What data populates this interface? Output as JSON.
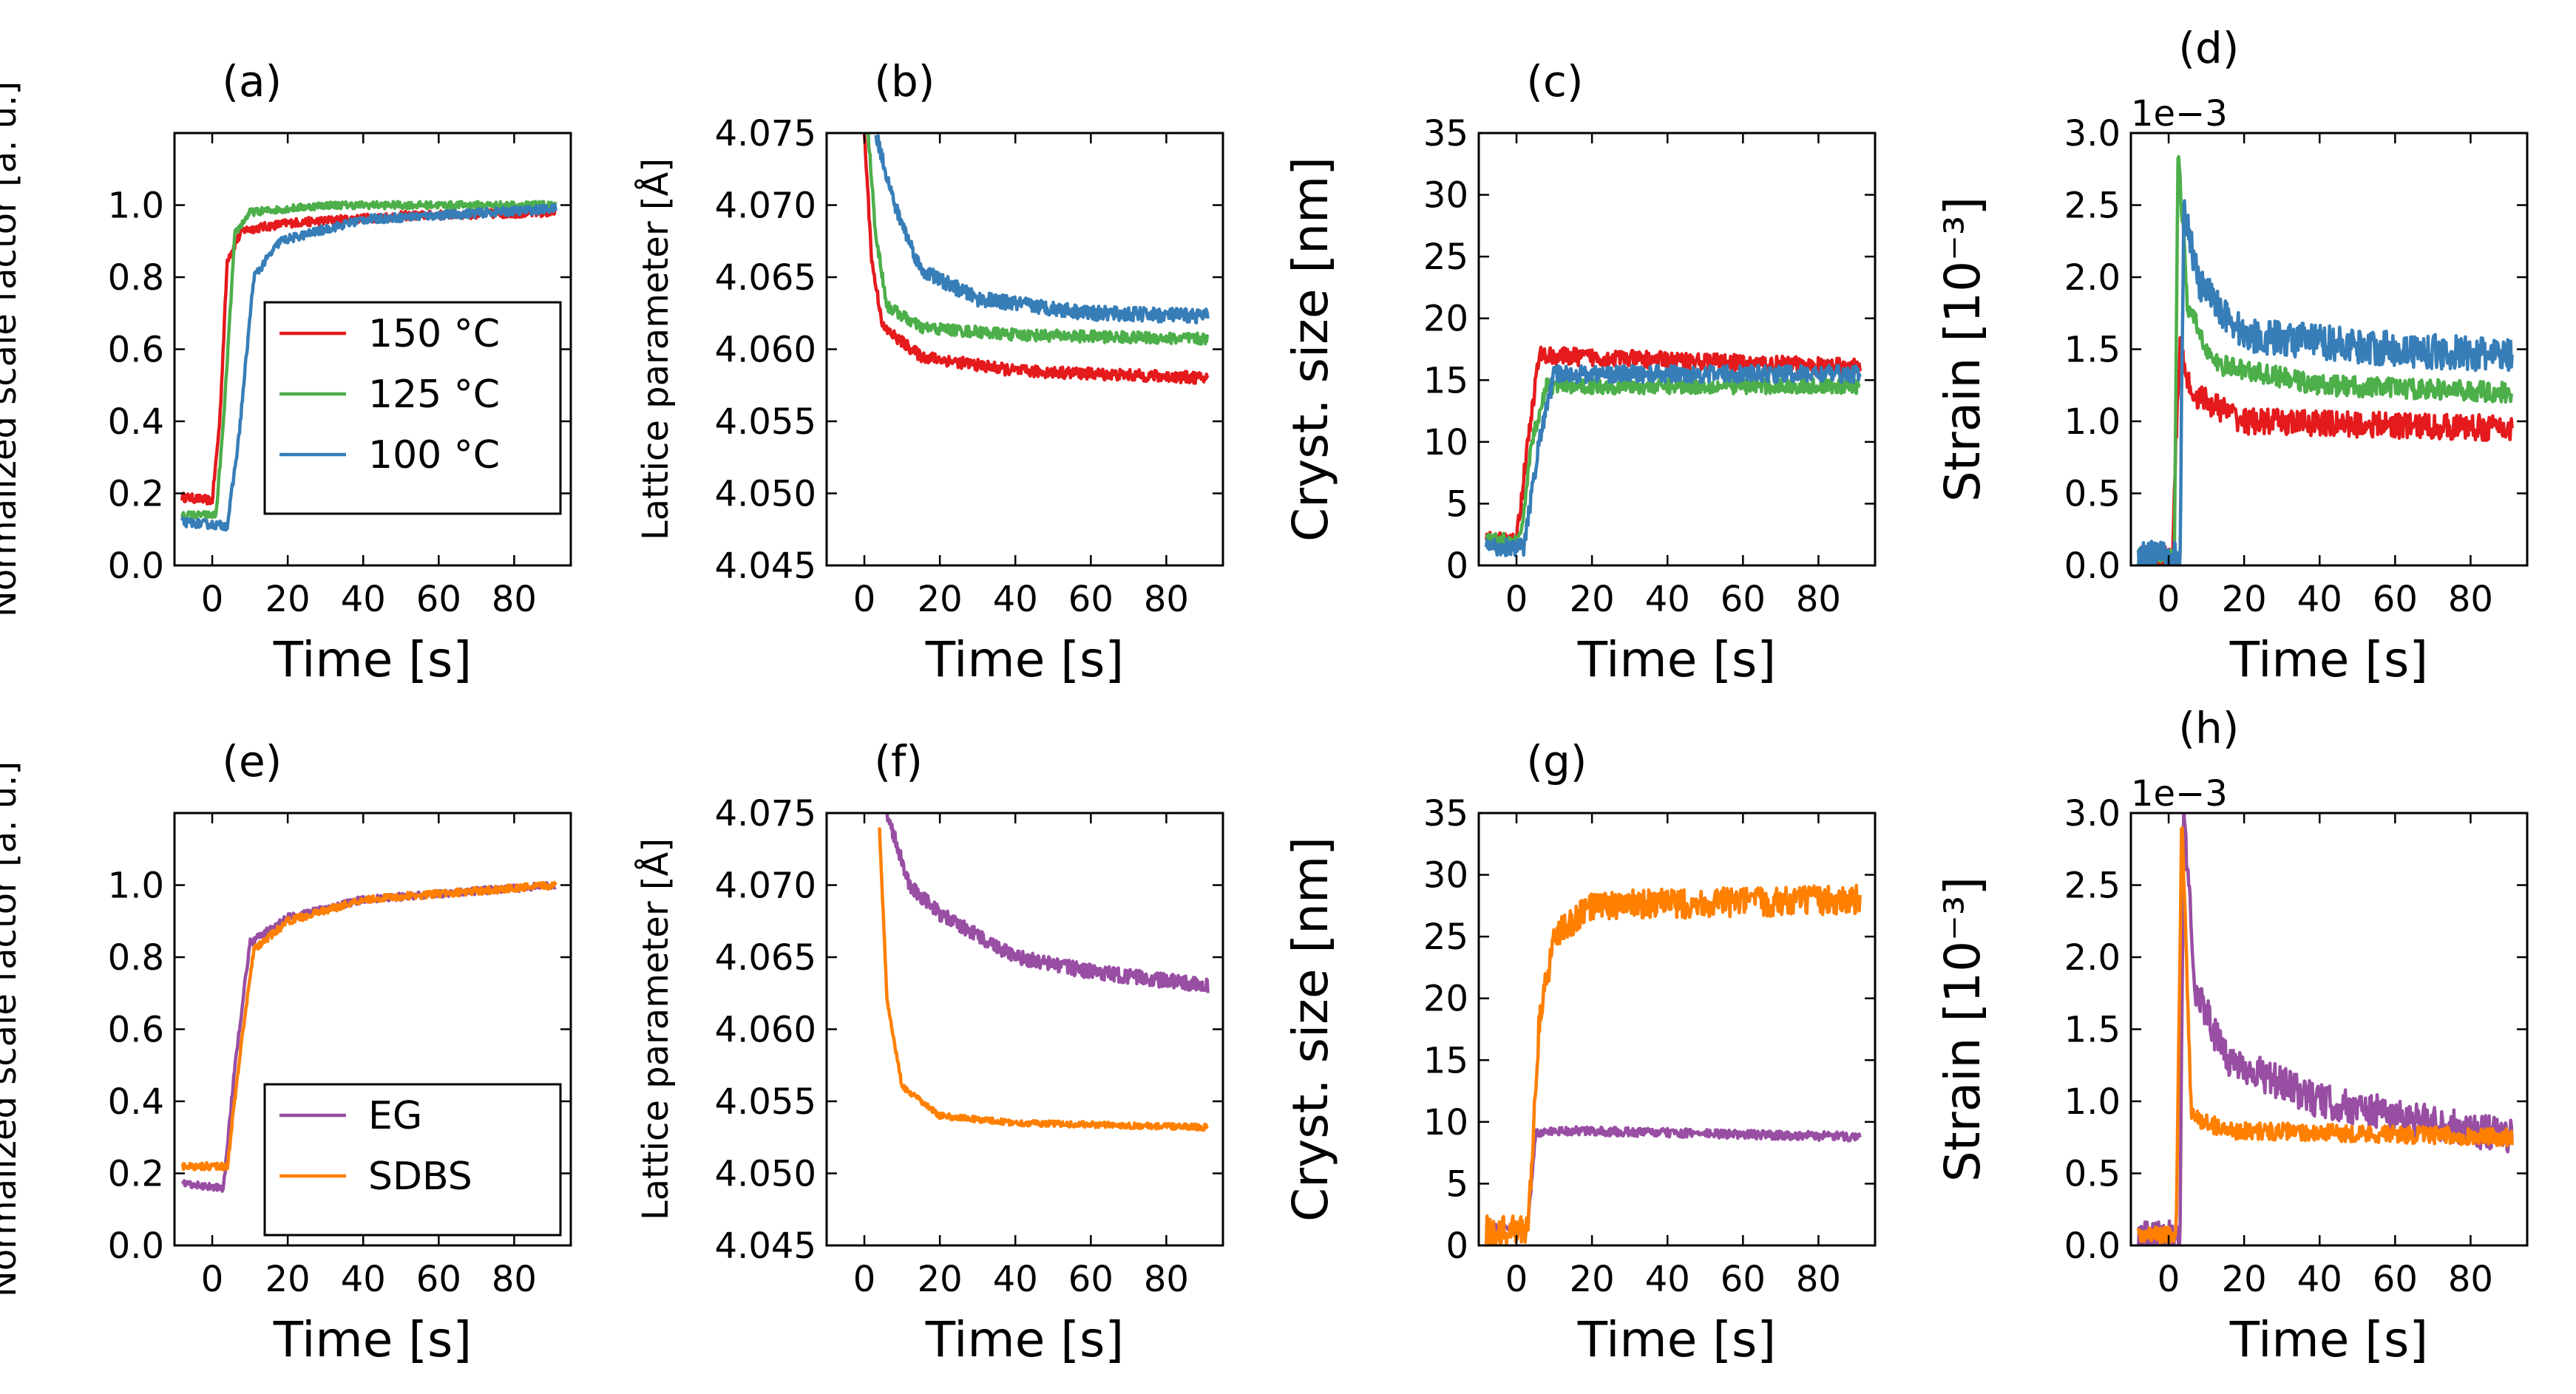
{
  "figure": {
    "rows": 2,
    "cols": 4
  },
  "colors": {
    "c150": "#e41a1c",
    "c125": "#4daf4a",
    "c100": "#377eb8",
    "EG": "#984ea3",
    "SDBS": "#ff7f00"
  },
  "chart_data": [
    {
      "panel": "(a)",
      "type": "line",
      "xlabel": "Time [s]",
      "ylabel": "Normalized scale factor [a. u.]",
      "xlim": [
        -10,
        95
      ],
      "ylim": [
        0,
        1.2
      ],
      "xticks": [
        "0",
        "20",
        "40",
        "60",
        "80"
      ],
      "yticks": [
        "0.0",
        "0.2",
        "0.4",
        "0.6",
        "0.8",
        "1.0"
      ],
      "ytick_values": [
        0,
        0.2,
        0.4,
        0.6,
        0.8,
        1.0
      ],
      "legend": {
        "position": "center-right",
        "entries": [
          "150  °C",
          "125  °C",
          "100  °C"
        ]
      },
      "series": [
        {
          "name": "150  °C",
          "color_key": "c150",
          "noise": 0.012,
          "points": [
            [
              -8,
              0.19
            ],
            [
              0,
              0.18
            ],
            [
              2,
              0.4
            ],
            [
              4,
              0.85
            ],
            [
              8,
              0.93
            ],
            [
              20,
              0.95
            ],
            [
              50,
              0.97
            ],
            [
              91,
              0.98
            ]
          ]
        },
        {
          "name": "125  °C",
          "color_key": "c125",
          "noise": 0.01,
          "points": [
            [
              -8,
              0.14
            ],
            [
              1,
              0.14
            ],
            [
              3,
              0.4
            ],
            [
              6,
              0.92
            ],
            [
              10,
              0.98
            ],
            [
              30,
              1.0
            ],
            [
              91,
              1.0
            ]
          ]
        },
        {
          "name": "100  °C",
          "color_key": "c100",
          "noise": 0.012,
          "points": [
            [
              -8,
              0.12
            ],
            [
              4,
              0.11
            ],
            [
              7,
              0.35
            ],
            [
              11,
              0.8
            ],
            [
              18,
              0.9
            ],
            [
              40,
              0.96
            ],
            [
              91,
              0.99
            ]
          ]
        }
      ]
    },
    {
      "panel": "(b)",
      "type": "line",
      "xlabel": "Time [s]",
      "ylabel": "Lattice parameter [Å]",
      "xlim": [
        -10,
        95
      ],
      "ylim": [
        4.045,
        4.075
      ],
      "xticks": [
        "0",
        "20",
        "40",
        "60",
        "80"
      ],
      "yticks": [
        "4.045",
        "4.050",
        "4.055",
        "4.060",
        "4.065",
        "4.070",
        "4.075"
      ],
      "ytick_values": [
        4.045,
        4.05,
        4.055,
        4.06,
        4.065,
        4.07,
        4.075
      ],
      "series": [
        {
          "name": "150  °C",
          "color_key": "c150",
          "noise": 0.0004,
          "points": [
            [
              0,
              4.075
            ],
            [
              2,
              4.066
            ],
            [
              5,
              4.0615
            ],
            [
              15,
              4.0595
            ],
            [
              40,
              4.0585
            ],
            [
              91,
              4.058
            ]
          ]
        },
        {
          "name": "125  °C",
          "color_key": "c125",
          "noise": 0.0004,
          "points": [
            [
              1,
              4.075
            ],
            [
              3,
              4.068
            ],
            [
              6,
              4.063
            ],
            [
              15,
              4.0615
            ],
            [
              40,
              4.061
            ],
            [
              91,
              4.0607
            ]
          ]
        },
        {
          "name": "100  °C",
          "color_key": "c100",
          "noise": 0.0005,
          "points": [
            [
              3,
              4.075
            ],
            [
              8,
              4.07
            ],
            [
              15,
              4.0655
            ],
            [
              30,
              4.0635
            ],
            [
              60,
              4.0625
            ],
            [
              91,
              4.0623
            ]
          ]
        }
      ]
    },
    {
      "panel": "(c)",
      "type": "line",
      "xlabel": "Time [s]",
      "ylabel": "Cryst. size [nm]",
      "xlim": [
        -10,
        95
      ],
      "ylim": [
        0,
        35
      ],
      "xticks": [
        "0",
        "20",
        "40",
        "60",
        "80"
      ],
      "yticks": [
        "0",
        "5",
        "10",
        "15",
        "20",
        "25",
        "30",
        "35"
      ],
      "ytick_values": [
        0,
        5,
        10,
        15,
        20,
        25,
        30,
        35
      ],
      "series": [
        {
          "name": "150  °C",
          "color_key": "c150",
          "noise": 0.7,
          "points": [
            [
              -8,
              2
            ],
            [
              0,
              2
            ],
            [
              3,
              10
            ],
            [
              6,
              17
            ],
            [
              91,
              16
            ]
          ]
        },
        {
          "name": "125  °C",
          "color_key": "c125",
          "noise": 0.6,
          "points": [
            [
              -8,
              2
            ],
            [
              1,
              2
            ],
            [
              4,
              10
            ],
            [
              8,
              14.5
            ],
            [
              91,
              14.5
            ]
          ]
        },
        {
          "name": "100  °C",
          "color_key": "c100",
          "noise": 0.7,
          "points": [
            [
              -8,
              1.5
            ],
            [
              2,
              1.5
            ],
            [
              6,
              10
            ],
            [
              10,
              15.5
            ],
            [
              91,
              15.5
            ]
          ]
        }
      ]
    },
    {
      "panel": "(d)",
      "type": "line",
      "xlabel": "Time [s]",
      "ylabel": "Strain [10⁻³]",
      "offset_text": "1e−3",
      "xlim": [
        -10,
        95
      ],
      "ylim": [
        0,
        3.0
      ],
      "xticks": [
        "0",
        "20",
        "40",
        "60",
        "80"
      ],
      "yticks": [
        "0.0",
        "0.5",
        "1.0",
        "1.5",
        "2.0",
        "2.5",
        "3.0"
      ],
      "ytick_values": [
        0,
        0.5,
        1.0,
        1.5,
        2.0,
        2.5,
        3.0
      ],
      "series": [
        {
          "name": "150  °C",
          "color_key": "c150",
          "noise": 0.09,
          "points": [
            [
              -8,
              0.05
            ],
            [
              1,
              0.05
            ],
            [
              2,
              0.9
            ],
            [
              3,
              1.5
            ],
            [
              6,
              1.2
            ],
            [
              20,
              1.0
            ],
            [
              91,
              0.95
            ]
          ]
        },
        {
          "name": "125  °C",
          "color_key": "c125",
          "noise": 0.07,
          "points": [
            [
              -8,
              0.05
            ],
            [
              1.5,
              0.05
            ],
            [
              2.5,
              2.9
            ],
            [
              5,
              1.8
            ],
            [
              12,
              1.4
            ],
            [
              40,
              1.25
            ],
            [
              91,
              1.2
            ]
          ]
        },
        {
          "name": "100  °C",
          "color_key": "c100",
          "noise": 0.12,
          "points": [
            [
              -8,
              0.05
            ],
            [
              3,
              0.05
            ],
            [
              4,
              2.5
            ],
            [
              8,
              1.95
            ],
            [
              20,
              1.6
            ],
            [
              60,
              1.5
            ],
            [
              91,
              1.45
            ]
          ]
        }
      ]
    },
    {
      "panel": "(e)",
      "type": "line",
      "xlabel": "Time [s]",
      "ylabel": "Normalized scale factor [a. u.]",
      "xlim": [
        -10,
        95
      ],
      "ylim": [
        0,
        1.2
      ],
      "xticks": [
        "0",
        "20",
        "40",
        "60",
        "80"
      ],
      "yticks": [
        "0.0",
        "0.2",
        "0.4",
        "0.6",
        "0.8",
        "1.0"
      ],
      "ytick_values": [
        0,
        0.2,
        0.4,
        0.6,
        0.8,
        1.0
      ],
      "legend": {
        "position": "bottom-right",
        "entries": [
          "EG",
          "SDBS"
        ]
      },
      "series": [
        {
          "name": "EG",
          "color_key": "EG",
          "noise": 0.01,
          "points": [
            [
              -8,
              0.17
            ],
            [
              3,
              0.16
            ],
            [
              6,
              0.5
            ],
            [
              10,
              0.84
            ],
            [
              20,
              0.91
            ],
            [
              40,
              0.96
            ],
            [
              91,
              1.0
            ]
          ]
        },
        {
          "name": "SDBS",
          "color_key": "SDBS",
          "noise": 0.01,
          "points": [
            [
              -8,
              0.22
            ],
            [
              4,
              0.22
            ],
            [
              7,
              0.5
            ],
            [
              11,
              0.82
            ],
            [
              20,
              0.9
            ],
            [
              40,
              0.96
            ],
            [
              91,
              1.0
            ]
          ]
        }
      ]
    },
    {
      "panel": "(f)",
      "type": "line",
      "xlabel": "Time [s]",
      "ylabel": "Lattice parameter [Å]",
      "xlim": [
        -10,
        95
      ],
      "ylim": [
        4.045,
        4.075
      ],
      "xticks": [
        "0",
        "20",
        "40",
        "60",
        "80"
      ],
      "yticks": [
        "4.045",
        "4.050",
        "4.055",
        "4.060",
        "4.065",
        "4.070",
        "4.075"
      ],
      "ytick_values": [
        4.045,
        4.05,
        4.055,
        4.06,
        4.065,
        4.07,
        4.075
      ],
      "series": [
        {
          "name": "EG",
          "color_key": "EG",
          "noise": 0.0005,
          "points": [
            [
              6,
              4.075
            ],
            [
              12,
              4.07
            ],
            [
              20,
              4.068
            ],
            [
              40,
              4.065
            ],
            [
              60,
              4.064
            ],
            [
              91,
              4.063
            ]
          ]
        },
        {
          "name": "SDBS",
          "color_key": "SDBS",
          "noise": 0.0002,
          "points": [
            [
              4,
              4.074
            ],
            [
              6,
              4.062
            ],
            [
              10,
              4.056
            ],
            [
              20,
              4.054
            ],
            [
              40,
              4.0535
            ],
            [
              91,
              4.0532
            ]
          ]
        }
      ]
    },
    {
      "panel": "(g)",
      "type": "line",
      "xlabel": "Time [s]",
      "ylabel": "Cryst. size [nm]",
      "xlim": [
        -10,
        95
      ],
      "ylim": [
        0,
        35
      ],
      "xticks": [
        "0",
        "20",
        "40",
        "60",
        "80"
      ],
      "yticks": [
        "0",
        "5",
        "10",
        "15",
        "20",
        "25",
        "30",
        "35"
      ],
      "ytick_values": [
        0,
        5,
        10,
        15,
        20,
        25,
        30,
        35
      ],
      "series": [
        {
          "name": "EG",
          "color_key": "EG",
          "noise": 0.35,
          "points": [
            [
              -8,
              1.5
            ],
            [
              3,
              1.5
            ],
            [
              5,
              9
            ],
            [
              10,
              9.3
            ],
            [
              91,
              8.8
            ]
          ]
        },
        {
          "name": "SDBS",
          "color_key": "SDBS",
          "noise": 1.2,
          "points": [
            [
              -8,
              1.2
            ],
            [
              3,
              1.2
            ],
            [
              6,
              18
            ],
            [
              10,
              25
            ],
            [
              20,
              27.5
            ],
            [
              91,
              28
            ]
          ]
        }
      ]
    },
    {
      "panel": "(h)",
      "type": "line",
      "xlabel": "Time [s]",
      "ylabel": "Strain [10⁻³]",
      "offset_text": "1e−3",
      "xlim": [
        -10,
        95
      ],
      "ylim": [
        0,
        3.0
      ],
      "xticks": [
        "0",
        "20",
        "40",
        "60",
        "80"
      ],
      "yticks": [
        "0.0",
        "0.5",
        "1.0",
        "1.5",
        "2.0",
        "2.5",
        "3.0"
      ],
      "ytick_values": [
        0,
        0.5,
        1.0,
        1.5,
        2.0,
        2.5,
        3.0
      ],
      "series": [
        {
          "name": "EG",
          "color_key": "EG",
          "noise": 0.12,
          "points": [
            [
              -8,
              0.05
            ],
            [
              3,
              0.05
            ],
            [
              4,
              3.0
            ],
            [
              7,
              1.8
            ],
            [
              15,
              1.3
            ],
            [
              40,
              1.0
            ],
            [
              91,
              0.75
            ]
          ]
        },
        {
          "name": "SDBS",
          "color_key": "SDBS",
          "noise": 0.06,
          "points": [
            [
              -8,
              0.07
            ],
            [
              2,
              0.07
            ],
            [
              3.5,
              3.0
            ],
            [
              6,
              0.9
            ],
            [
              15,
              0.8
            ],
            [
              91,
              0.75
            ]
          ]
        }
      ]
    }
  ]
}
